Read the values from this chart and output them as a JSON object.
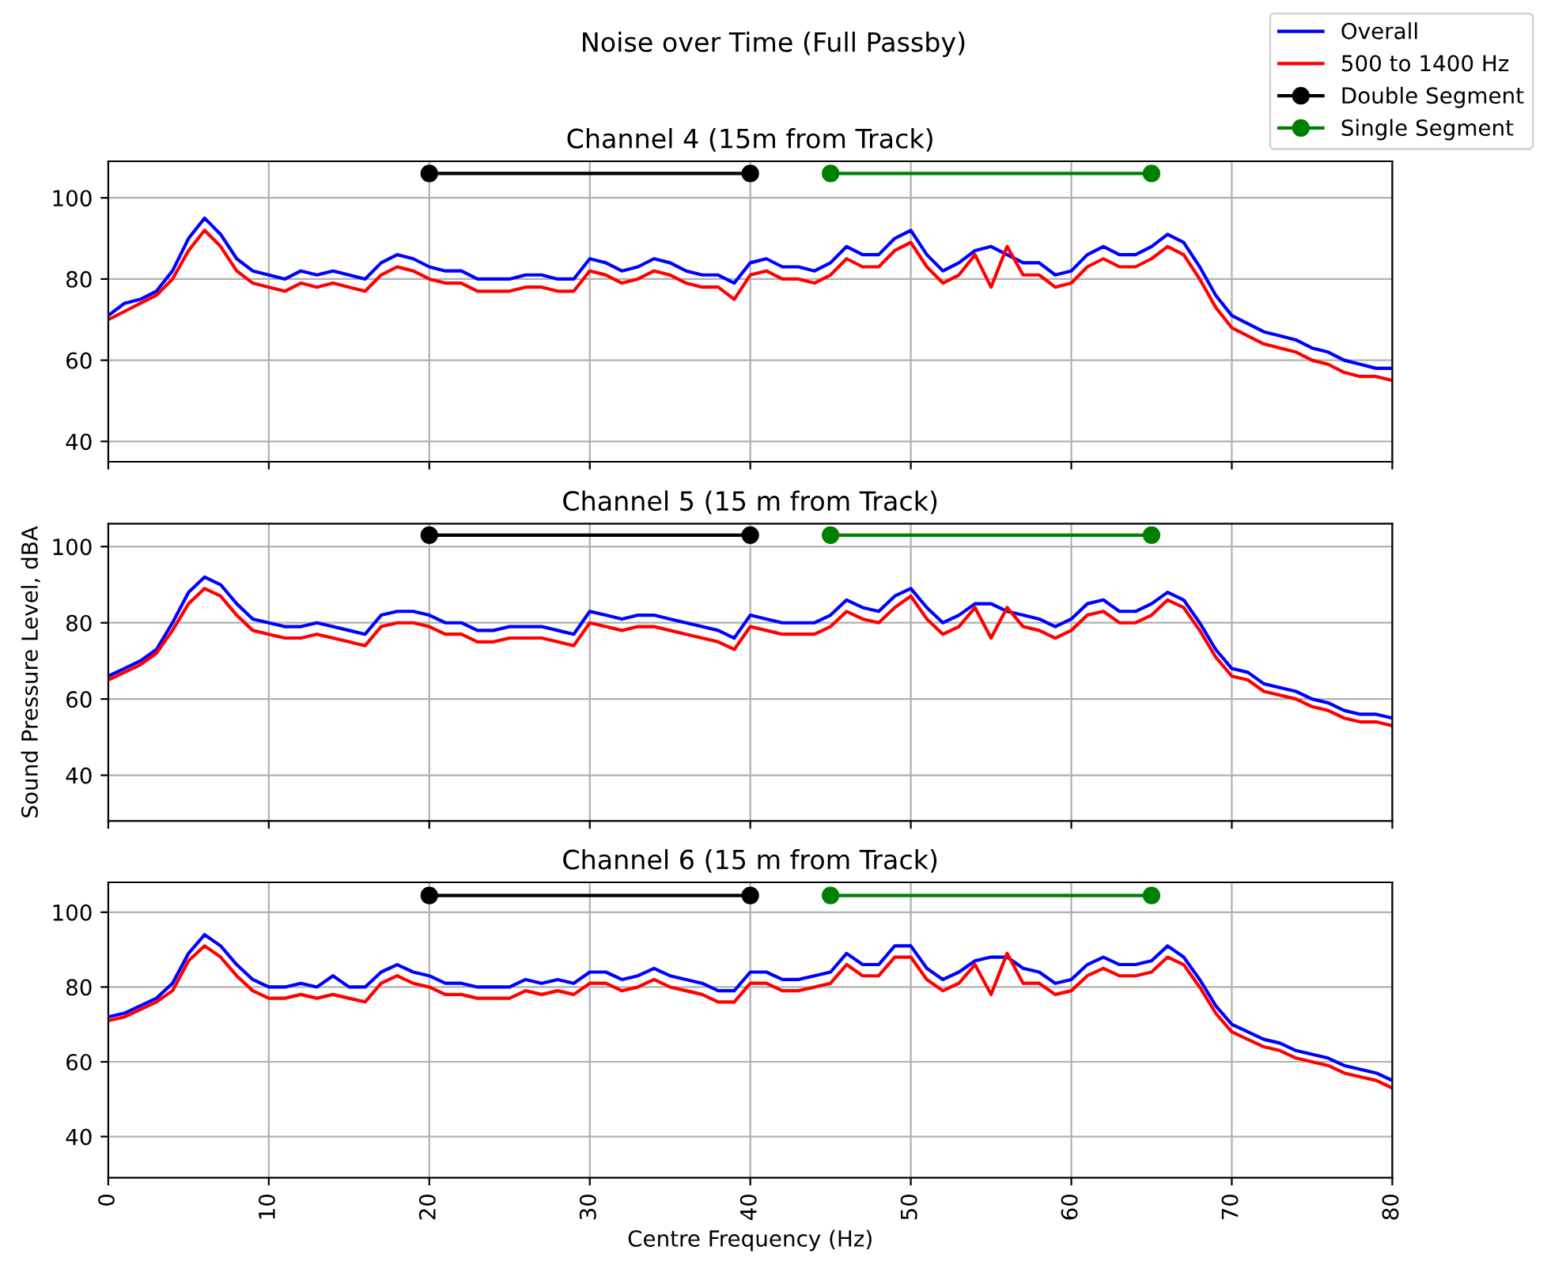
{
  "chart_data": [
    {
      "type": "line",
      "title": "Noise over Time (Full Passby)",
      "subtitle": "Channel 4 (15m from Track)",
      "legend": "top right",
      "grid": true,
      "tick_labels": "y",
      "line_style": "solid",
      "x": [
        0,
        1,
        2,
        3,
        4,
        5,
        6,
        7,
        8,
        9,
        10,
        11,
        12,
        13,
        14,
        15,
        16,
        17,
        18,
        19,
        20,
        21,
        22,
        23,
        24,
        25,
        26,
        27,
        28,
        29,
        30,
        31,
        32,
        33,
        34,
        35,
        36,
        37,
        38,
        39,
        40,
        41,
        42,
        43,
        44,
        45,
        46,
        47,
        48,
        49,
        50,
        51,
        52,
        53,
        54,
        55,
        56,
        57,
        58,
        59,
        60,
        61,
        62,
        63,
        64,
        65,
        66,
        67,
        68,
        69,
        70,
        71,
        72,
        73,
        74,
        75,
        76,
        77,
        78,
        79,
        80
      ],
      "xlim": [
        0,
        80
      ],
      "ylim": [
        35,
        109
      ],
      "yticks": [
        40,
        60,
        80,
        100
      ],
      "series": [
        {
          "name": "Overall",
          "color": "#0000ff",
          "values": [
            71,
            74,
            75,
            77,
            82,
            90,
            95,
            91,
            85,
            82,
            81,
            80,
            82,
            81,
            82,
            81,
            80,
            84,
            86,
            85,
            83,
            82,
            82,
            80,
            80,
            80,
            81,
            81,
            80,
            80,
            85,
            84,
            82,
            83,
            85,
            84,
            82,
            81,
            81,
            79,
            84,
            85,
            83,
            83,
            82,
            84,
            88,
            86,
            86,
            90,
            92,
            86,
            82,
            84,
            87,
            88,
            86,
            84,
            84,
            81,
            82,
            86,
            88,
            86,
            86,
            88,
            91,
            89,
            83,
            76,
            71,
            69,
            67,
            66,
            65,
            63,
            62,
            60,
            59,
            58,
            58
          ]
        },
        {
          "name": "500 to 1400 Hz",
          "color": "#ff0000",
          "values": [
            70,
            72,
            74,
            76,
            80,
            87,
            92,
            88,
            82,
            79,
            78,
            77,
            79,
            78,
            79,
            78,
            77,
            81,
            83,
            82,
            80,
            79,
            79,
            77,
            77,
            77,
            78,
            78,
            77,
            77,
            82,
            81,
            79,
            80,
            82,
            81,
            79,
            78,
            78,
            75,
            81,
            82,
            80,
            80,
            79,
            81,
            85,
            83,
            83,
            87,
            89,
            83,
            79,
            81,
            86,
            78,
            88,
            81,
            81,
            78,
            79,
            83,
            85,
            83,
            83,
            85,
            88,
            86,
            80,
            73,
            68,
            66,
            64,
            63,
            62,
            60,
            59,
            57,
            56,
            56,
            55
          ]
        },
        {
          "name": "Double Segment",
          "color": "#000000",
          "marker": "circle",
          "x": [
            20,
            40
          ],
          "values": [
            106,
            106
          ]
        },
        {
          "name": "Single Segment",
          "color": "#008000",
          "marker": "circle",
          "x": [
            45,
            65
          ],
          "values": [
            106,
            106
          ]
        }
      ]
    },
    {
      "type": "line",
      "title": "Channel 5 (15 m from Track)",
      "ylabel": "Sound Pressure Level, dBA",
      "grid": true,
      "tick_labels": "y",
      "line_style": "solid",
      "x": [
        0,
        1,
        2,
        3,
        4,
        5,
        6,
        7,
        8,
        9,
        10,
        11,
        12,
        13,
        14,
        15,
        16,
        17,
        18,
        19,
        20,
        21,
        22,
        23,
        24,
        25,
        26,
        27,
        28,
        29,
        30,
        31,
        32,
        33,
        34,
        35,
        36,
        37,
        38,
        39,
        40,
        41,
        42,
        43,
        44,
        45,
        46,
        47,
        48,
        49,
        50,
        51,
        52,
        53,
        54,
        55,
        56,
        57,
        58,
        59,
        60,
        61,
        62,
        63,
        64,
        65,
        66,
        67,
        68,
        69,
        70,
        71,
        72,
        73,
        74,
        75,
        76,
        77,
        78,
        79,
        80
      ],
      "xlim": [
        0,
        80
      ],
      "ylim": [
        28,
        106
      ],
      "yticks": [
        40,
        60,
        80,
        100
      ],
      "series": [
        {
          "color": "#0000ff",
          "values": [
            66,
            68,
            70,
            73,
            80,
            88,
            92,
            90,
            85,
            81,
            80,
            79,
            79,
            80,
            79,
            78,
            77,
            82,
            83,
            83,
            82,
            80,
            80,
            78,
            78,
            79,
            79,
            79,
            78,
            77,
            83,
            82,
            81,
            82,
            82,
            81,
            80,
            79,
            78,
            76,
            82,
            81,
            80,
            80,
            80,
            82,
            86,
            84,
            83,
            87,
            89,
            84,
            80,
            82,
            85,
            85,
            83,
            82,
            81,
            79,
            81,
            85,
            86,
            83,
            83,
            85,
            88,
            86,
            80,
            73,
            68,
            67,
            64,
            63,
            62,
            60,
            59,
            57,
            56,
            56,
            55
          ]
        },
        {
          "color": "#ff0000",
          "values": [
            65,
            67,
            69,
            72,
            78,
            85,
            89,
            87,
            82,
            78,
            77,
            76,
            76,
            77,
            76,
            75,
            74,
            79,
            80,
            80,
            79,
            77,
            77,
            75,
            75,
            76,
            76,
            76,
            75,
            74,
            80,
            79,
            78,
            79,
            79,
            78,
            77,
            76,
            75,
            73,
            79,
            78,
            77,
            77,
            77,
            79,
            83,
            81,
            80,
            84,
            87,
            81,
            77,
            79,
            84,
            76,
            84,
            79,
            78,
            76,
            78,
            82,
            83,
            80,
            80,
            82,
            86,
            84,
            78,
            71,
            66,
            65,
            62,
            61,
            60,
            58,
            57,
            55,
            54,
            54,
            53
          ]
        },
        {
          "color": "#000000",
          "marker": "circle",
          "x": [
            20,
            40
          ],
          "values": [
            103,
            103
          ]
        },
        {
          "color": "#008000",
          "marker": "circle",
          "x": [
            45,
            65
          ],
          "values": [
            103,
            103
          ]
        }
      ]
    },
    {
      "type": "line",
      "title": "Channel 6 (15 m from Track)",
      "xlabel": "Centre Frequency (Hz)",
      "grid": true,
      "line_style": "solid",
      "x": [
        0,
        1,
        2,
        3,
        4,
        5,
        6,
        7,
        8,
        9,
        10,
        11,
        12,
        13,
        14,
        15,
        16,
        17,
        18,
        19,
        20,
        21,
        22,
        23,
        24,
        25,
        26,
        27,
        28,
        29,
        30,
        31,
        32,
        33,
        34,
        35,
        36,
        37,
        38,
        39,
        40,
        41,
        42,
        43,
        44,
        45,
        46,
        47,
        48,
        49,
        50,
        51,
        52,
        53,
        54,
        55,
        56,
        57,
        58,
        59,
        60,
        61,
        62,
        63,
        64,
        65,
        66,
        67,
        68,
        69,
        70,
        71,
        72,
        73,
        74,
        75,
        76,
        77,
        78,
        79,
        80
      ],
      "xlim": [
        0,
        80
      ],
      "xticks": [
        0,
        10,
        20,
        30,
        40,
        50,
        60,
        70,
        80
      ],
      "ylim": [
        29,
        108
      ],
      "yticks": [
        40,
        60,
        80,
        100
      ],
      "series": [
        {
          "color": "#0000ff",
          "values": [
            72,
            73,
            75,
            77,
            81,
            89,
            94,
            91,
            86,
            82,
            80,
            80,
            81,
            80,
            83,
            80,
            80,
            84,
            86,
            84,
            83,
            81,
            81,
            80,
            80,
            80,
            82,
            81,
            82,
            81,
            84,
            84,
            82,
            83,
            85,
            83,
            82,
            81,
            79,
            79,
            84,
            84,
            82,
            82,
            83,
            84,
            89,
            86,
            86,
            91,
            91,
            85,
            82,
            84,
            87,
            88,
            88,
            85,
            84,
            81,
            82,
            86,
            88,
            86,
            86,
            87,
            91,
            88,
            82,
            75,
            70,
            68,
            66,
            65,
            63,
            62,
            61,
            59,
            58,
            57,
            55
          ]
        },
        {
          "color": "#ff0000",
          "values": [
            71,
            72,
            74,
            76,
            79,
            87,
            91,
            88,
            83,
            79,
            77,
            77,
            78,
            77,
            78,
            77,
            76,
            81,
            83,
            81,
            80,
            78,
            78,
            77,
            77,
            77,
            79,
            78,
            79,
            78,
            81,
            81,
            79,
            80,
            82,
            80,
            79,
            78,
            76,
            76,
            81,
            81,
            79,
            79,
            80,
            81,
            86,
            83,
            83,
            88,
            88,
            82,
            79,
            81,
            86,
            78,
            89,
            81,
            81,
            78,
            79,
            83,
            85,
            83,
            83,
            84,
            88,
            86,
            80,
            73,
            68,
            66,
            64,
            63,
            61,
            60,
            59,
            57,
            56,
            55,
            53
          ]
        },
        {
          "color": "#000000",
          "marker": "circle",
          "x": [
            20,
            40
          ],
          "values": [
            104.5,
            104.5
          ]
        },
        {
          "color": "#008000",
          "marker": "circle",
          "x": [
            45,
            65
          ],
          "values": [
            104.5,
            104.5
          ]
        }
      ]
    }
  ]
}
